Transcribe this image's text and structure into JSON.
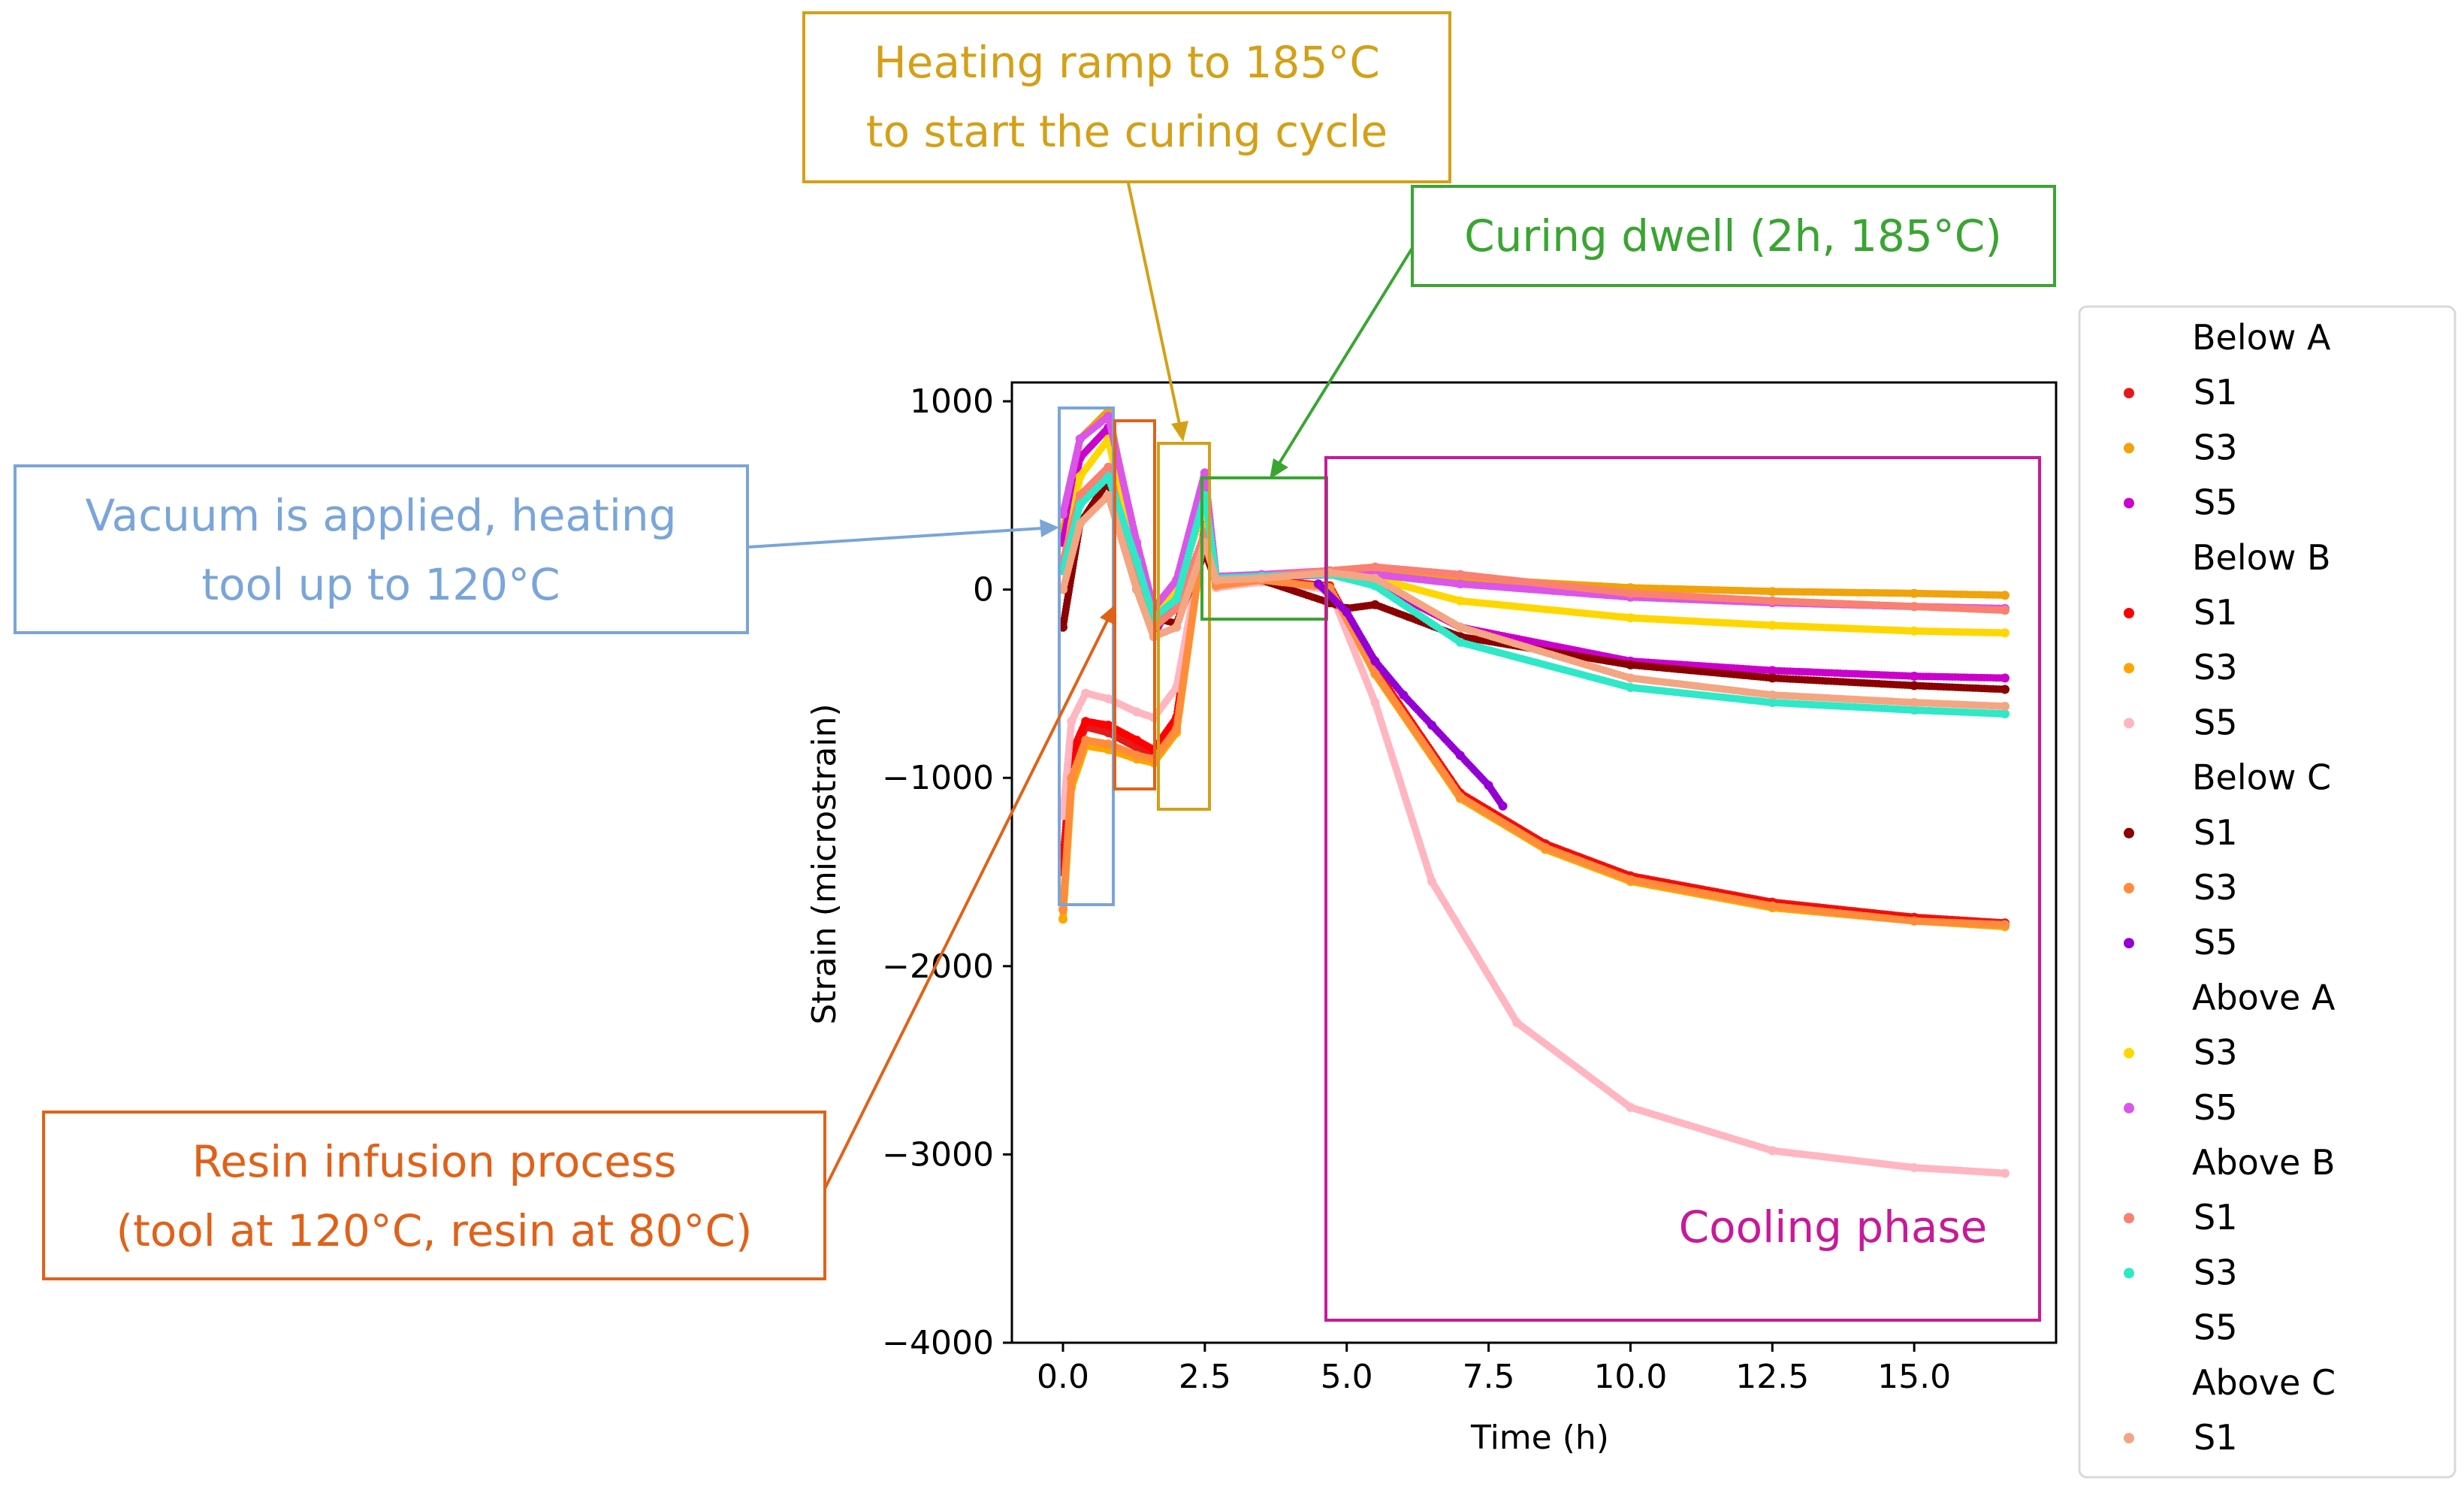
{
  "chart_data": {
    "type": "scatter",
    "title": "",
    "xlabel": "Time (h)",
    "ylabel": "Strain (microstrain)",
    "xlim": [
      -0.9,
      17.5
    ],
    "ylim": [
      -4000,
      1100
    ],
    "xticks": [
      0.0,
      2.5,
      5.0,
      7.5,
      10.0,
      12.5,
      15.0
    ],
    "xtick_labels": [
      "0.0",
      "2.5",
      "5.0",
      "7.5",
      "10.0",
      "12.5",
      "15.0"
    ],
    "yticks": [
      1000,
      0,
      -1000,
      -2000,
      -3000,
      -4000
    ],
    "ytick_labels": [
      "1000",
      "0",
      "−1000",
      "−2000",
      "−3000",
      "−4000"
    ],
    "legend_location": "right, outside plot",
    "legend": [
      {
        "type": "header",
        "label": "Below A"
      },
      {
        "type": "entry",
        "label": "S1",
        "color": "#e31a1c"
      },
      {
        "type": "entry",
        "label": "S3",
        "color": "#f0a30a"
      },
      {
        "type": "entry",
        "label": "S5",
        "color": "#cc00cc"
      },
      {
        "type": "header",
        "label": "Below B"
      },
      {
        "type": "entry",
        "label": "S1",
        "color": "#ff0000"
      },
      {
        "type": "entry",
        "label": "S3",
        "color": "#ffa500"
      },
      {
        "type": "entry",
        "label": "S5",
        "color": "#ffb6c1"
      },
      {
        "type": "header",
        "label": "Below C"
      },
      {
        "type": "entry",
        "label": "S1",
        "color": "#8b0000"
      },
      {
        "type": "entry",
        "label": "S3",
        "color": "#ff8c3c"
      },
      {
        "type": "entry",
        "label": "S5",
        "color": "#9400d3"
      },
      {
        "type": "header",
        "label": "Above A"
      },
      {
        "type": "entry",
        "label": "S3",
        "color": "#ffd700"
      },
      {
        "type": "entry",
        "label": "S5",
        "color": "#da55e8"
      },
      {
        "type": "header",
        "label": "Above B"
      },
      {
        "type": "entry",
        "label": "S1",
        "color": "#fa8072"
      },
      {
        "type": "entry",
        "label": "S3",
        "color": "#2ee8c8"
      },
      {
        "type": "entry",
        "label": "S5",
        "color": null
      },
      {
        "type": "header",
        "label": "Above C"
      },
      {
        "type": "entry",
        "label": "S1",
        "color": "#f4a582"
      }
    ],
    "series": [
      {
        "name": "Below A S1",
        "color": "#e31a1c",
        "x": [
          0,
          0.15,
          0.4,
          0.8,
          1.3,
          1.6,
          2.0,
          2.5,
          2.7,
          3.5,
          4.7,
          5.5,
          7,
          8.5,
          10,
          12.5,
          15,
          16.6
        ],
        "y": [
          -1500,
          -900,
          -730,
          -760,
          -840,
          -870,
          -700,
          350,
          20,
          50,
          20,
          -420,
          -1080,
          -1350,
          -1520,
          -1660,
          -1740,
          -1770
        ]
      },
      {
        "name": "Below A S3",
        "color": "#f0a30a",
        "x": [
          0,
          0.3,
          0.8,
          1.3,
          1.6,
          2.0,
          2.5,
          2.7,
          3.5,
          4.7,
          5.5,
          7,
          10,
          12.5,
          15,
          16.6
        ],
        "y": [
          300,
          800,
          950,
          200,
          -200,
          20,
          580,
          60,
          70,
          90,
          100,
          60,
          10,
          -10,
          -20,
          -30
        ]
      },
      {
        "name": "Below A S5",
        "color": "#cc00cc",
        "x": [
          0,
          0.3,
          0.8,
          1.3,
          1.6,
          2.0,
          2.5,
          2.7,
          3.5,
          4.7,
          5.5,
          7,
          10,
          12.5,
          15,
          16.6
        ],
        "y": [
          250,
          700,
          860,
          150,
          -250,
          0,
          600,
          50,
          60,
          80,
          30,
          -200,
          -380,
          -430,
          -460,
          -470
        ]
      },
      {
        "name": "Below B S1",
        "color": "#ff0000",
        "x": [
          0,
          0.15,
          0.4,
          0.8,
          1.3,
          1.6,
          2.0,
          2.5,
          2.7,
          3.5,
          4.7,
          5.5,
          7,
          8.5,
          10,
          12.5,
          15,
          16.6
        ],
        "y": [
          -1450,
          -870,
          -700,
          -720,
          -800,
          -850,
          -680,
          340,
          20,
          50,
          20,
          -430,
          -1090,
          -1360,
          -1530,
          -1670,
          -1750,
          -1780
        ]
      },
      {
        "name": "Below B S3",
        "color": "#ffa500",
        "x": [
          0,
          0.15,
          0.4,
          0.8,
          1.3,
          1.6,
          2.0,
          2.5,
          2.7,
          3.5,
          4.7,
          5.5,
          7,
          8.5,
          10,
          12.5,
          15,
          16.6
        ],
        "y": [
          -1750,
          -1050,
          -830,
          -850,
          -900,
          -920,
          -760,
          320,
          20,
          50,
          10,
          -450,
          -1110,
          -1380,
          -1550,
          -1690,
          -1760,
          -1790
        ]
      },
      {
        "name": "Below B S5",
        "color": "#ffb6c1",
        "x": [
          0,
          0.15,
          0.4,
          0.8,
          1.3,
          1.6,
          2.0,
          2.5,
          2.7,
          3.5,
          4.7,
          5.5,
          6.5,
          8,
          10,
          12.5,
          15,
          16.6
        ],
        "y": [
          -1200,
          -700,
          -550,
          -580,
          -650,
          -680,
          -520,
          300,
          10,
          40,
          0,
          -600,
          -1550,
          -2300,
          -2750,
          -2980,
          -3070,
          -3100
        ]
      },
      {
        "name": "Below C S1",
        "color": "#8b0000",
        "x": [
          0,
          0.3,
          0.8,
          1.3,
          1.6,
          2.0,
          2.5,
          2.7,
          3.5,
          4.7,
          5.0,
          5.5,
          7,
          10,
          12.5,
          15,
          16.6
        ],
        "y": [
          -200,
          350,
          580,
          0,
          -150,
          -180,
          200,
          40,
          50,
          -70,
          -100,
          -80,
          -250,
          -400,
          -470,
          -510,
          -530
        ]
      },
      {
        "name": "Below C S3",
        "color": "#ff8c3c",
        "x": [
          0,
          0.15,
          0.4,
          0.8,
          1.3,
          1.6,
          2.0,
          2.5,
          2.7,
          3.5,
          4.7,
          5.5,
          7,
          8.5,
          10,
          12.5,
          15,
          16.6
        ],
        "y": [
          -1700,
          -1000,
          -800,
          -820,
          -880,
          -900,
          -740,
          330,
          20,
          50,
          10,
          -440,
          -1100,
          -1370,
          -1540,
          -1680,
          -1760,
          -1780
        ]
      },
      {
        "name": "Below C S5",
        "color": "#9400d3",
        "x": [
          4.5,
          5.0,
          5.5,
          6.0,
          6.5,
          7.0,
          7.5,
          7.75
        ],
        "y": [
          30,
          -120,
          -380,
          -560,
          -720,
          -880,
          -1040,
          -1150
        ]
      },
      {
        "name": "Above A S3",
        "color": "#ffd700",
        "x": [
          0,
          0.3,
          0.8,
          1.3,
          1.6,
          2.0,
          2.5,
          2.7,
          3.5,
          4.7,
          5.5,
          7,
          10,
          12.5,
          15,
          16.6
        ],
        "y": [
          100,
          600,
          800,
          100,
          -150,
          0,
          450,
          60,
          70,
          90,
          60,
          -60,
          -150,
          -190,
          -220,
          -230
        ]
      },
      {
        "name": "Above A S5",
        "color": "#da55e8",
        "x": [
          0,
          0.3,
          0.8,
          1.3,
          1.6,
          2.0,
          2.5,
          2.7,
          3.5,
          4.7,
          5.5,
          7,
          10,
          12.5,
          15,
          16.6
        ],
        "y": [
          400,
          800,
          920,
          250,
          -100,
          50,
          620,
          70,
          80,
          100,
          80,
          30,
          -40,
          -70,
          -90,
          -100
        ]
      },
      {
        "name": "Above B S1",
        "color": "#fa8072",
        "x": [
          0,
          0.3,
          0.8,
          1.3,
          1.6,
          2.0,
          2.5,
          2.7,
          3.5,
          4.7,
          5.5,
          7,
          10,
          12.5,
          15,
          16.6
        ],
        "y": [
          150,
          500,
          650,
          50,
          -200,
          -100,
          300,
          60,
          70,
          100,
          120,
          80,
          -20,
          -60,
          -90,
          -110
        ]
      },
      {
        "name": "Above B S3",
        "color": "#2ee8c8",
        "x": [
          0,
          0.3,
          0.8,
          1.3,
          1.6,
          2.0,
          2.5,
          2.7,
          3.5,
          4.7,
          5.5,
          7,
          10,
          12.5,
          15,
          16.6
        ],
        "y": [
          100,
          450,
          600,
          150,
          -150,
          -50,
          500,
          60,
          70,
          80,
          20,
          -280,
          -520,
          -600,
          -640,
          -660
        ]
      },
      {
        "name": "Above C S1",
        "color": "#f4a582",
        "x": [
          0,
          0.3,
          0.8,
          1.3,
          1.6,
          2.0,
          2.5,
          2.7,
          3.5,
          4.7,
          5.5,
          7,
          10,
          12.5,
          15,
          16.6
        ],
        "y": [
          0,
          350,
          500,
          0,
          -250,
          -200,
          250,
          50,
          60,
          90,
          60,
          -200,
          -470,
          -560,
          -600,
          -620
        ]
      }
    ],
    "annotations": [
      {
        "id": "vacuum",
        "lines": [
          "Vacuum is applied, heating",
          "tool up to  120°C"
        ],
        "color": "#7aa5d9",
        "x_range": [
          0,
          0.9
        ],
        "y_range": [
          -1660,
          980
        ]
      },
      {
        "id": "ramp",
        "lines": [
          "Heating ramp to 185°C",
          "to start the curing cycle"
        ],
        "color": "#d4a017",
        "x_range": [
          1.7,
          2.6
        ],
        "y_range": [
          -1150,
          800
        ]
      },
      {
        "id": "dwell",
        "lines": [
          "Curing dwell (2h, 185°C)"
        ],
        "color": "#3aa532",
        "x_range": [
          2.65,
          4.6
        ],
        "y_range": [
          -140,
          600
        ]
      },
      {
        "id": "infusion",
        "lines": [
          "Resin infusion process",
          "(tool at 120°C, resin at 80°C)"
        ],
        "color": "#e0621a",
        "x_range": [
          0.95,
          1.65
        ],
        "y_range": [
          -1050,
          920
        ]
      },
      {
        "id": "cooling",
        "lines": [
          "Cooling phase"
        ],
        "color": "#c8199a",
        "x_range": [
          4.65,
          16.9
        ],
        "y_range": [
          -3860,
          720
        ]
      }
    ]
  }
}
